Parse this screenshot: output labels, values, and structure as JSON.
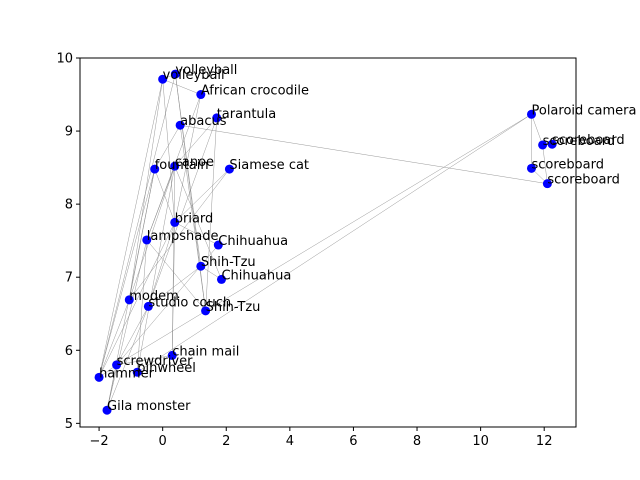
{
  "chart_data": {
    "type": "scatter",
    "title": "",
    "xlabel": "",
    "ylabel": "",
    "xlim": [
      -2.6,
      13.0
    ],
    "ylim": [
      4.95,
      10.0
    ],
    "xticks": [
      -2,
      0,
      2,
      4,
      6,
      8,
      10,
      12
    ],
    "yticks": [
      5,
      6,
      7,
      8,
      9,
      10
    ],
    "grid": false,
    "point_color": "#0000ff",
    "edge_color": "#808080",
    "points": [
      {
        "label": "volleyball",
        "x": 0.4,
        "y": 9.78
      },
      {
        "label": "volleyball",
        "x": 0.0,
        "y": 9.71
      },
      {
        "label": "African crocodile",
        "x": 1.2,
        "y": 9.5
      },
      {
        "label": "tarantula",
        "x": 1.7,
        "y": 9.18
      },
      {
        "label": "abacus",
        "x": 0.55,
        "y": 9.08
      },
      {
        "label": "Polaroid camera",
        "x": 11.6,
        "y": 9.23
      },
      {
        "label": "scoreboard",
        "x": 12.25,
        "y": 8.82
      },
      {
        "label": "scoreboard",
        "x": 11.95,
        "y": 8.81
      },
      {
        "label": "scoreboard",
        "x": 11.6,
        "y": 8.49
      },
      {
        "label": "scoreboard",
        "x": 12.1,
        "y": 8.28
      },
      {
        "label": "canoe",
        "x": 0.38,
        "y": 8.52
      },
      {
        "label": "fountain",
        "x": -0.25,
        "y": 8.48
      },
      {
        "label": "Siamese cat",
        "x": 2.1,
        "y": 8.48
      },
      {
        "label": "briard",
        "x": 0.38,
        "y": 7.75
      },
      {
        "label": "lampshade",
        "x": -0.5,
        "y": 7.51
      },
      {
        "label": "Chihuahua",
        "x": 1.75,
        "y": 7.44
      },
      {
        "label": "Shih-Tzu",
        "x": 1.2,
        "y": 7.15
      },
      {
        "label": "Chihuahua",
        "x": 1.85,
        "y": 6.97
      },
      {
        "label": "modem",
        "x": -1.05,
        "y": 6.69
      },
      {
        "label": "studio couch",
        "x": -0.45,
        "y": 6.6
      },
      {
        "label": "Shih-Tzu",
        "x": 1.35,
        "y": 6.54
      },
      {
        "label": "chain mail",
        "x": 0.3,
        "y": 5.93
      },
      {
        "label": "screwdriver",
        "x": -1.45,
        "y": 5.8
      },
      {
        "label": "pinwheel",
        "x": -0.8,
        "y": 5.7
      },
      {
        "label": "hammer",
        "x": -2.0,
        "y": 5.63
      },
      {
        "label": "Gila monster",
        "x": -1.75,
        "y": 5.18
      }
    ],
    "edges": [
      [
        24,
        1
      ],
      [
        24,
        0
      ],
      [
        24,
        11
      ],
      [
        24,
        18
      ],
      [
        24,
        22
      ],
      [
        24,
        13
      ],
      [
        25,
        14
      ],
      [
        25,
        22
      ],
      [
        25,
        19
      ],
      [
        25,
        11
      ],
      [
        22,
        21
      ],
      [
        22,
        19
      ],
      [
        22,
        5
      ],
      [
        22,
        15
      ],
      [
        23,
        5
      ],
      [
        23,
        10
      ],
      [
        23,
        14
      ],
      [
        18,
        11
      ],
      [
        18,
        10
      ],
      [
        18,
        1
      ],
      [
        18,
        12
      ],
      [
        19,
        3
      ],
      [
        19,
        13
      ],
      [
        19,
        16
      ],
      [
        21,
        13
      ],
      [
        21,
        10
      ],
      [
        1,
        0
      ],
      [
        1,
        13
      ],
      [
        1,
        2
      ],
      [
        0,
        16
      ],
      [
        0,
        20
      ],
      [
        2,
        14
      ],
      [
        2,
        13
      ],
      [
        4,
        9
      ],
      [
        4,
        11
      ],
      [
        4,
        20
      ],
      [
        3,
        10
      ],
      [
        3,
        20
      ],
      [
        10,
        17
      ],
      [
        10,
        14
      ],
      [
        11,
        13
      ],
      [
        14,
        20
      ],
      [
        16,
        17
      ],
      [
        13,
        15
      ],
      [
        13,
        12
      ],
      [
        5,
        7
      ],
      [
        6,
        7
      ],
      [
        8,
        9
      ],
      [
        7,
        9
      ],
      [
        5,
        8
      ]
    ]
  }
}
